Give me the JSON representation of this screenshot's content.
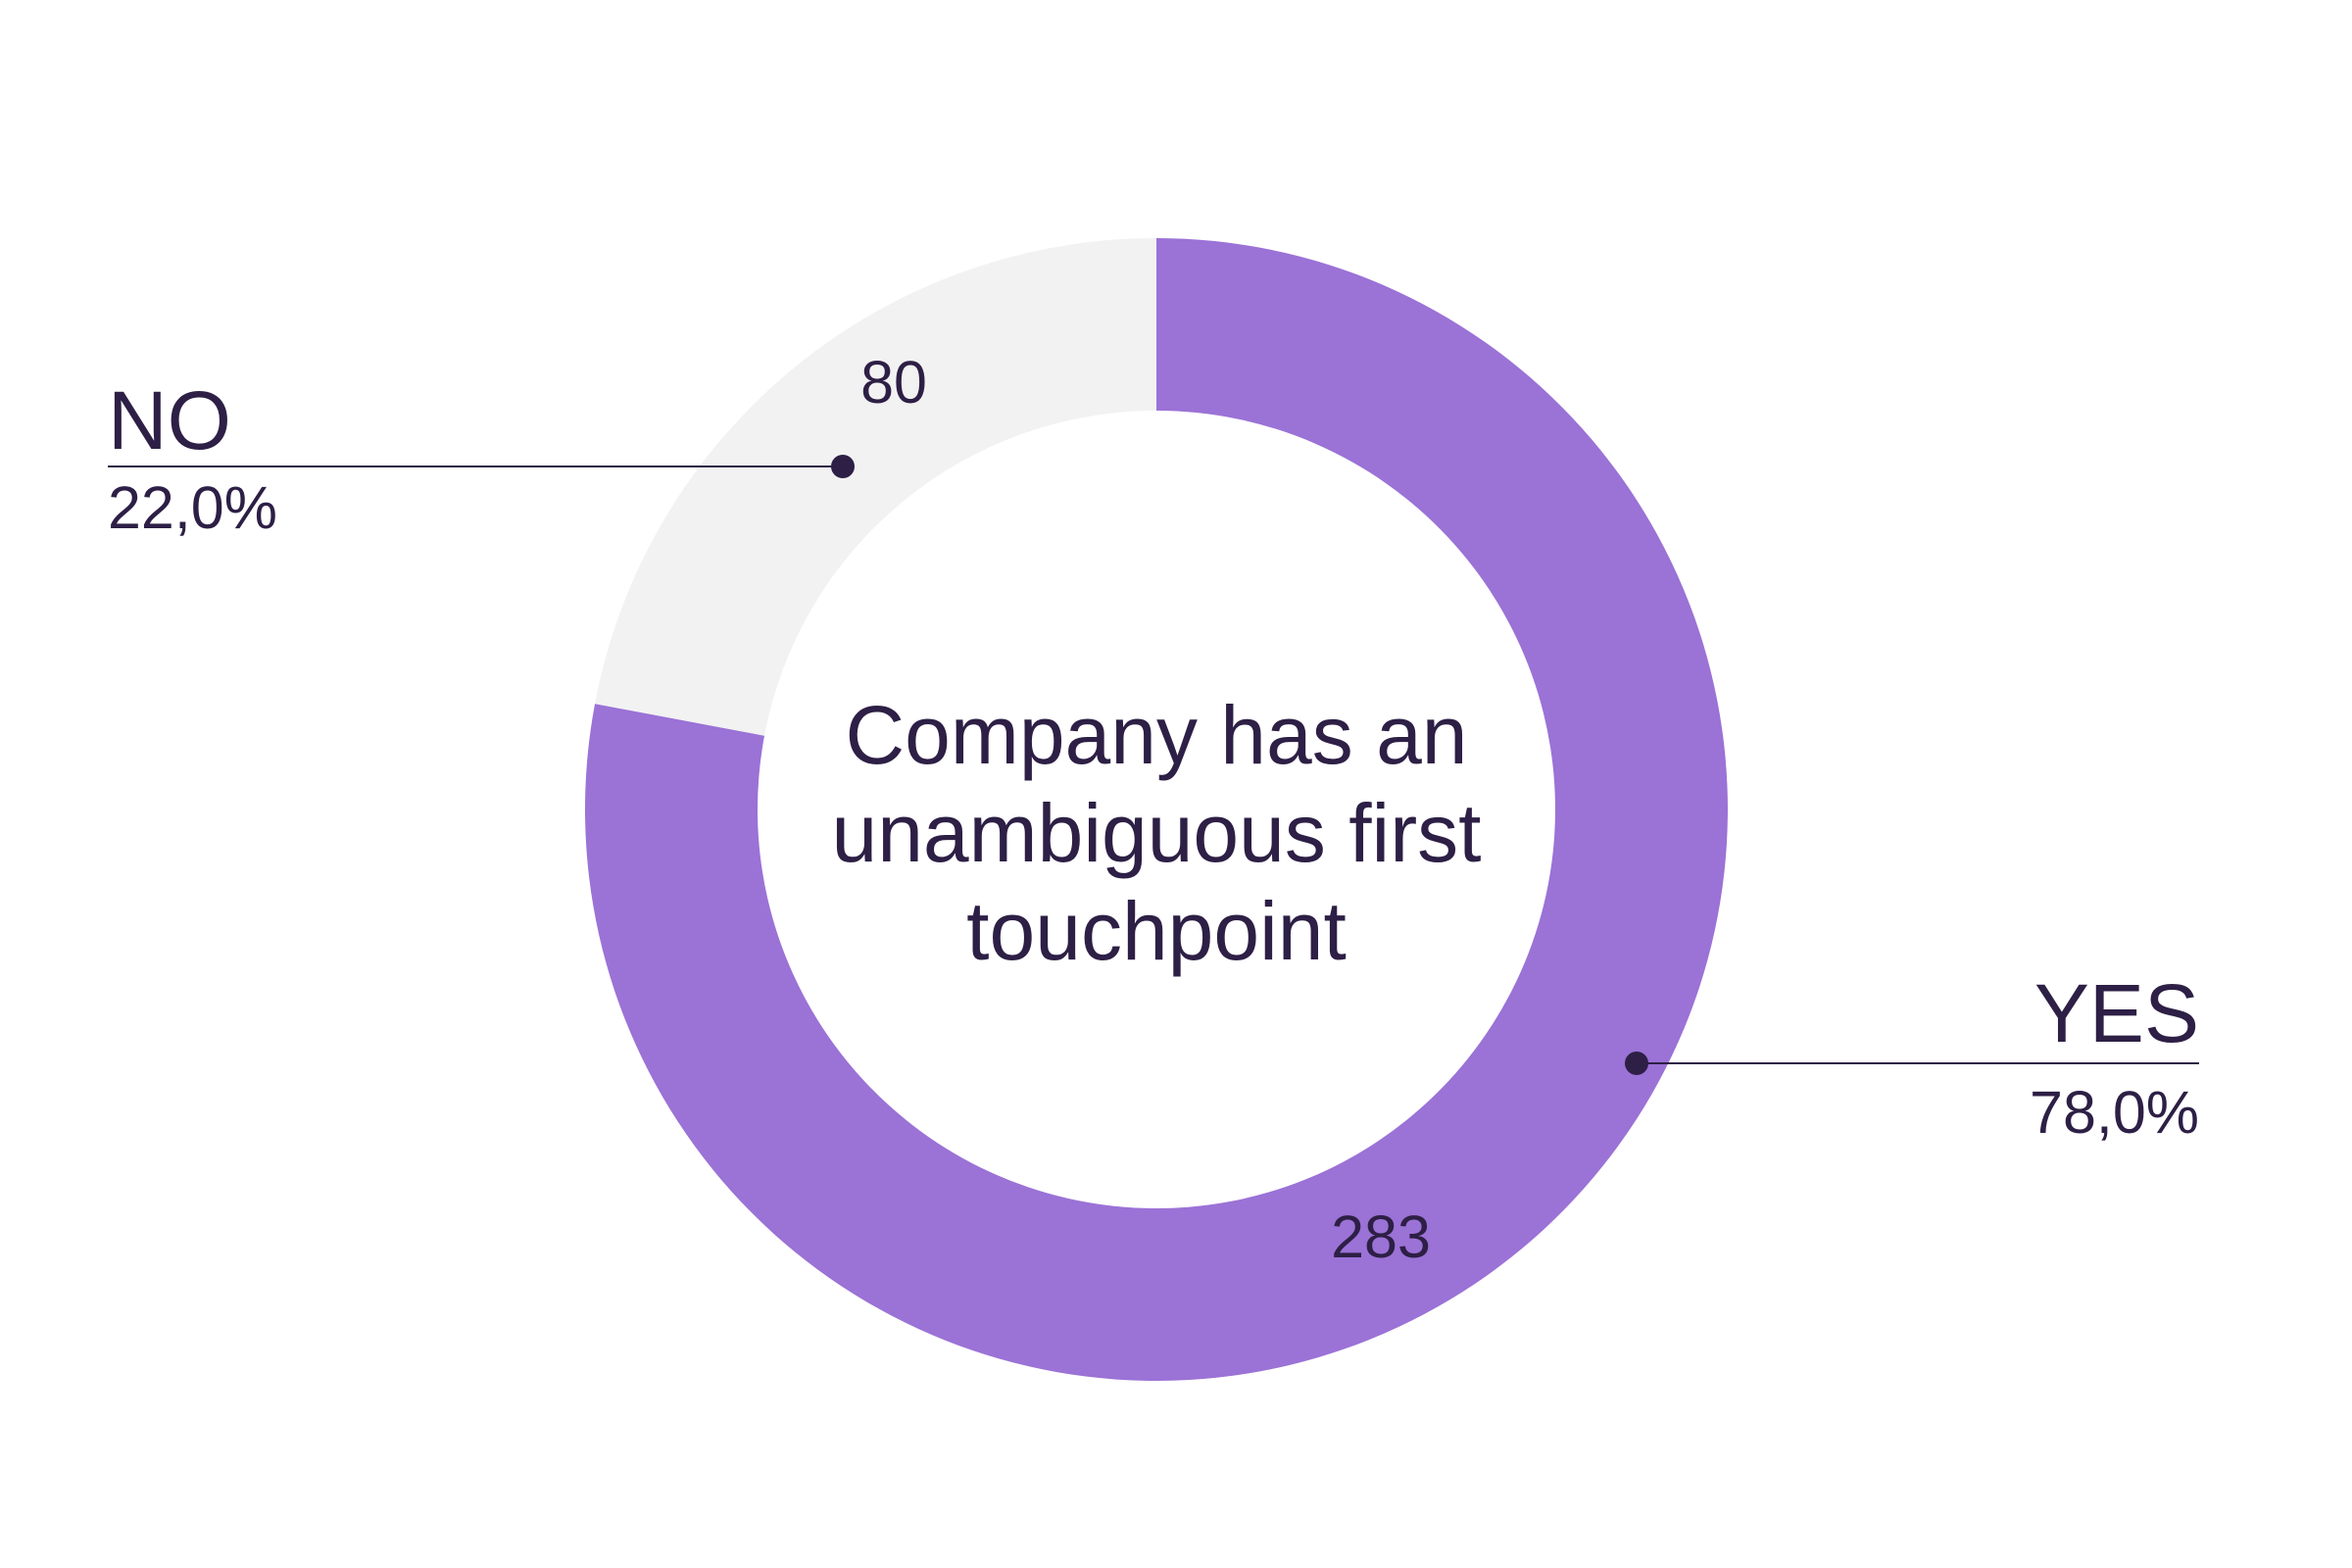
{
  "chart_data": {
    "type": "donut",
    "title": "Company has an unambiguous first touchpoint",
    "categories": [
      "YES",
      "NO"
    ],
    "values": [
      283,
      80
    ],
    "percent_labels": [
      "78,0%",
      "22,0%"
    ],
    "colors": [
      "#9b72d6",
      "#f2f2f2"
    ]
  }
}
